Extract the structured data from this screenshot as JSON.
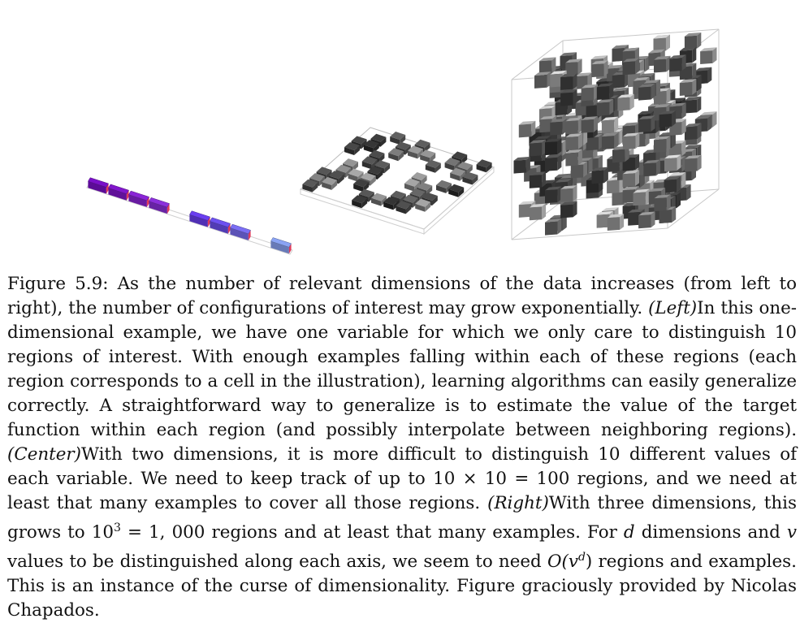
{
  "figure": {
    "panels": [
      {
        "name": "left",
        "cells_highlighted": [
          0,
          1,
          2,
          3,
          5,
          6,
          7,
          9
        ],
        "cell_colors": [
          "#7a10c9",
          "#8116cc",
          "#8a24d6",
          "#8b2fdb",
          "#6a3ef0",
          "#6c50f0",
          "#7b6ef4",
          "#8aa3f4"
        ]
      },
      {
        "name": "center"
      },
      {
        "name": "right"
      }
    ]
  },
  "caption": {
    "label": "Figure 5.9:",
    "s1": "As the number of relevant dimensions of the data increases (from left to right), the number of configurations of interest may grow exponentially.",
    "left_tag": "(Left)",
    "left_text": "In this one-dimensional example, we have one variable for which we only care to distinguish 10 regions of interest. With enough examples falling within each of these regions (each region corresponds to a cell in the illustration), learning algorithms can easily generalize correctly. A straightforward way to generalize is to estimate the value of the target function within each region (and possibly interpolate between neighboring regions).",
    "center_tag": "(Center)",
    "center_text_1": "With two dimensions, it is more difficult to distinguish 10 different values of each variable. We need to keep track of up to",
    "center_math": "10 × 10 = 100",
    "center_text_2": "regions, and we need at least that many examples to cover all those regions.",
    "right_tag": "(Right)",
    "right_text_1": "With three dimensions, this grows to",
    "right_math_base": "10",
    "right_math_exp": "3",
    "right_math_rest": "= 1, 000",
    "right_text_2": "regions and at least that many examples. For",
    "var_d": "d",
    "t3": "dimensions and",
    "var_v": "v",
    "t4": "values to be distinguished along each axis, we seem to need",
    "bigO_pre": "O(",
    "bigO_v": "v",
    "bigO_exp": "d",
    "bigO_post": ")",
    "t5": "regions and examples. This is an instance of the curse of dimensionality. Figure graciously provided by Nicolas Chapados."
  }
}
